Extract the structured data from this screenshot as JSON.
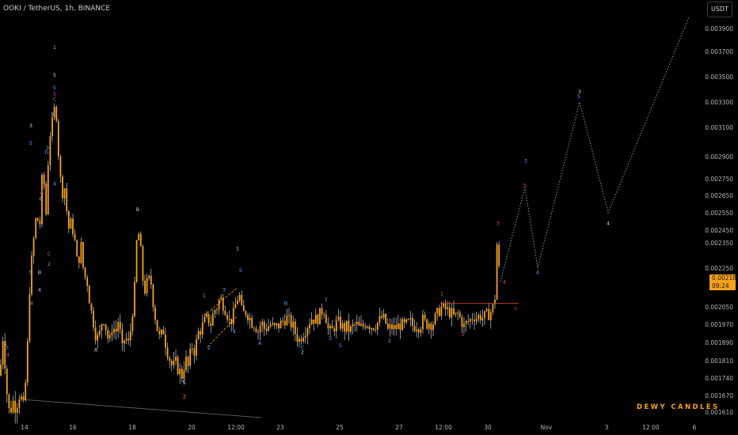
{
  "header": {
    "symbol_title": "OOKI / TetherUS, 1h, BINANCE"
  },
  "scale": {
    "unit_label": "USDT"
  },
  "last_price": {
    "value": "0.002186",
    "countdown": "09:24"
  },
  "watermark": {
    "text": "DEWY CANDLES"
  },
  "colors": {
    "background": "#000000",
    "candle": "#f7a21b",
    "wick": "#c9ccd4",
    "axis_text": "#b2b5be",
    "projection": "#9aa0a6",
    "label_blue": "#4aa3ff",
    "label_orange": "#f7a21b",
    "label_magenta": "#c64aa8",
    "label_white": "#c9ccd4",
    "resistance": "#c0392b"
  },
  "chart_data": {
    "type": "candlestick",
    "title": "OOKI / TetherUS, 1h, BINANCE",
    "ylim": [
      0.00159,
      0.004
    ],
    "y_ticks": [
      "0.003900",
      "0.003700",
      "0.003500",
      "0.003300",
      "0.003100",
      "0.002900",
      "0.002750",
      "0.002650",
      "0.002550",
      "0.002450",
      "0.002350",
      "0.002250",
      "0.002050",
      "0.001970",
      "0.001890",
      "0.001810",
      "0.001740",
      "0.001670",
      "0.001610"
    ],
    "x_ticks": [
      "14",
      "16",
      "18",
      "20",
      "12:00",
      "23",
      "25",
      "27",
      "12:00",
      "30",
      "Nov",
      "3",
      "12:00",
      "6"
    ],
    "price_path": [
      [
        0,
        0.00175
      ],
      [
        4,
        0.00193
      ],
      [
        8,
        0.0017
      ],
      [
        12,
        0.0016
      ],
      [
        16,
        0.00165
      ],
      [
        20,
        0.00163
      ],
      [
        25,
        0.00168
      ],
      [
        30,
        0.00162
      ],
      [
        34,
        0.0018
      ],
      [
        38,
        0.0022
      ],
      [
        42,
        0.00235
      ],
      [
        46,
        0.00255
      ],
      [
        50,
        0.00245
      ],
      [
        54,
        0.00285
      ],
      [
        58,
        0.00252
      ],
      [
        62,
        0.003
      ],
      [
        66,
        0.00315
      ],
      [
        70,
        0.0033
      ],
      [
        74,
        0.0029
      ],
      [
        78,
        0.00265
      ],
      [
        82,
        0.0027
      ],
      [
        86,
        0.00245
      ],
      [
        90,
        0.0025
      ],
      [
        94,
        0.00238
      ],
      [
        98,
        0.00225
      ],
      [
        102,
        0.00235
      ],
      [
        106,
        0.00222
      ],
      [
        110,
        0.00218
      ],
      [
        114,
        0.00205
      ],
      [
        118,
        0.00198
      ],
      [
        122,
        0.0019
      ],
      [
        126,
        0.00193
      ],
      [
        130,
        0.00201
      ],
      [
        134,
        0.00195
      ],
      [
        138,
        0.00188
      ],
      [
        142,
        0.00197
      ],
      [
        146,
        0.00193
      ],
      [
        150,
        0.002
      ],
      [
        154,
        0.00185
      ],
      [
        158,
        0.00192
      ],
      [
        162,
        0.00188
      ],
      [
        166,
        0.00197
      ],
      [
        170,
        0.00215
      ],
      [
        174,
        0.00247
      ],
      [
        178,
        0.0023
      ],
      [
        182,
        0.00212
      ],
      [
        186,
        0.00218
      ],
      [
        190,
        0.0022
      ],
      [
        194,
        0.00205
      ],
      [
        198,
        0.00196
      ],
      [
        202,
        0.0019
      ],
      [
        206,
        0.00195
      ],
      [
        210,
        0.00187
      ],
      [
        214,
        0.00182
      ],
      [
        218,
        0.00178
      ],
      [
        222,
        0.0018
      ],
      [
        226,
        0.00177
      ],
      [
        230,
        0.00175
      ],
      [
        234,
        0.00182
      ],
      [
        238,
        0.00178
      ],
      [
        242,
        0.00188
      ],
      [
        246,
        0.00185
      ],
      [
        250,
        0.00193
      ],
      [
        254,
        0.00195
      ],
      [
        258,
        0.00198
      ],
      [
        262,
        0.002
      ],
      [
        266,
        0.00197
      ],
      [
        270,
        0.00203
      ],
      [
        274,
        0.00205
      ],
      [
        278,
        0.0021
      ],
      [
        282,
        0.00206
      ],
      [
        286,
        0.00203
      ],
      [
        290,
        0.00198
      ],
      [
        294,
        0.002
      ],
      [
        298,
        0.00207
      ],
      [
        302,
        0.00212
      ],
      [
        306,
        0.00201
      ],
      [
        310,
        0.00203
      ],
      [
        314,
        0.00201
      ],
      [
        318,
        0.00198
      ],
      [
        322,
        0.00197
      ],
      [
        326,
        0.00194
      ],
      [
        330,
        0.00198
      ],
      [
        334,
        0.00195
      ],
      [
        338,
        0.00196
      ],
      [
        342,
        0.00197
      ],
      [
        346,
        0.00195
      ],
      [
        350,
        0.00196
      ],
      [
        354,
        0.00197
      ],
      [
        358,
        0.00199
      ],
      [
        362,
        0.002
      ],
      [
        366,
        0.00198
      ],
      [
        370,
        0.00196
      ],
      [
        374,
        0.00192
      ],
      [
        378,
        0.0019
      ],
      [
        382,
        0.00193
      ],
      [
        386,
        0.00195
      ],
      [
        390,
        0.00198
      ],
      [
        394,
        0.002
      ],
      [
        398,
        0.00199
      ],
      [
        402,
        0.002
      ],
      [
        406,
        0.00203
      ],
      [
        410,
        0.00204
      ],
      [
        414,
        0.00195
      ],
      [
        418,
        0.00193
      ],
      [
        422,
        0.00196
      ],
      [
        426,
        0.00198
      ],
      [
        430,
        0.00197
      ],
      [
        434,
        0.00195
      ],
      [
        438,
        0.00196
      ],
      [
        442,
        0.00194
      ],
      [
        446,
        0.00196
      ],
      [
        450,
        0.00197
      ],
      [
        454,
        0.00195
      ],
      [
        458,
        0.00196
      ],
      [
        462,
        0.00198
      ],
      [
        466,
        0.00197
      ],
      [
        470,
        0.00196
      ],
      [
        474,
        0.00197
      ],
      [
        478,
        0.00198
      ],
      [
        482,
        0.002
      ],
      [
        486,
        0.00199
      ],
      [
        490,
        0.00194
      ],
      [
        494,
        0.00196
      ],
      [
        498,
        0.00195
      ],
      [
        502,
        0.00196
      ],
      [
        506,
        0.00197
      ],
      [
        510,
        0.00196
      ],
      [
        514,
        0.00197
      ],
      [
        518,
        0.00198
      ],
      [
        522,
        0.00196
      ],
      [
        526,
        0.00197
      ],
      [
        530,
        0.00196
      ],
      [
        534,
        0.00199
      ],
      [
        538,
        0.00197
      ],
      [
        542,
        0.00198
      ],
      [
        546,
        0.00197
      ],
      [
        550,
        0.002
      ],
      [
        554,
        0.00203
      ],
      [
        558,
        0.00205
      ],
      [
        562,
        0.00204
      ],
      [
        566,
        0.00203
      ],
      [
        570,
        0.00202
      ],
      [
        574,
        0.002
      ],
      [
        578,
        0.00202
      ],
      [
        582,
        0.00199
      ],
      [
        586,
        0.00196
      ],
      [
        590,
        0.00198
      ],
      [
        594,
        0.00199
      ],
      [
        598,
        0.00201
      ],
      [
        602,
        0.002
      ],
      [
        606,
        0.00201
      ],
      [
        610,
        0.002
      ],
      [
        614,
        0.00201
      ],
      [
        618,
        0.00202
      ],
      [
        622,
        0.00204
      ],
      [
        626,
        0.00212
      ],
      [
        628,
        0.0024
      ],
      [
        630,
        0.00225
      ],
      [
        632,
        0.00218
      ]
    ],
    "projection": [
      [
        632,
        0.00218
      ],
      [
        663,
        0.0027
      ],
      [
        679,
        0.00225
      ],
      [
        732,
        0.0033
      ],
      [
        768,
        0.00255
      ],
      [
        870,
        0.004
      ]
    ],
    "resistance": {
      "y": 0.002068,
      "x_from": 556,
      "x_to": 655,
      "label": "X"
    },
    "dashed_channel": [
      {
        "x1": 258,
        "y1": 0.00201,
        "x2": 300,
        "y2": 0.00215
      },
      {
        "x1": 262,
        "y1": 0.00187,
        "x2": 300,
        "y2": 0.00201
      }
    ],
    "lower_trendline": {
      "x1": 30,
      "y1": 0.001655,
      "x2": 330,
      "y2": 0.00159
    },
    "wave_labels": [
      {
        "t": "1",
        "x": 7,
        "y": 0.00188,
        "c": "white"
      },
      {
        "t": "5",
        "x": 9,
        "y": 0.00186,
        "c": "blue"
      },
      {
        "t": "4",
        "x": 10,
        "y": 0.00183,
        "c": "magenta"
      },
      {
        "t": "3",
        "x": 6,
        "y": 0.00182,
        "c": "magenta"
      },
      {
        "t": "1",
        "x": 69,
        "y": 0.00372,
        "c": "orange"
      },
      {
        "t": "5",
        "x": 69,
        "y": 0.0035,
        "c": "white"
      },
      {
        "t": "5",
        "x": 69,
        "y": 0.0034,
        "c": "blue"
      },
      {
        "t": "5",
        "x": 69,
        "y": 0.00335,
        "c": "magenta"
      },
      {
        "t": "C",
        "x": 69,
        "y": 0.00331,
        "c": "magenta"
      },
      {
        "t": "3",
        "x": 66,
        "y": 0.00319,
        "c": "blue"
      },
      {
        "t": "3",
        "x": 39,
        "y": 0.0031,
        "c": "white"
      },
      {
        "t": "5",
        "x": 39,
        "y": 0.00298,
        "c": "blue"
      },
      {
        "t": "A",
        "x": 53,
        "y": 0.00266,
        "c": "magenta"
      },
      {
        "t": "C",
        "x": 52,
        "y": 0.00262,
        "c": "white"
      },
      {
        "t": "B",
        "x": 58,
        "y": 0.0027,
        "c": "magenta"
      },
      {
        "t": "D",
        "x": 59,
        "y": 0.00292,
        "c": "blue"
      },
      {
        "t": "4",
        "x": 69,
        "y": 0.00271,
        "c": "blue"
      },
      {
        "t": "3",
        "x": 60,
        "y": 0.00295,
        "c": "blue"
      },
      {
        "t": "C",
        "x": 62,
        "y": 0.0023,
        "c": "magenta"
      },
      {
        "t": "2",
        "x": 62,
        "y": 0.00226,
        "c": "blue"
      },
      {
        "t": "3",
        "x": 38,
        "y": 0.00222,
        "c": "blue"
      },
      {
        "t": "B",
        "x": 50,
        "y": 0.00222,
        "c": "white"
      },
      {
        "t": "4",
        "x": 50,
        "y": 0.00213,
        "c": "white"
      },
      {
        "t": "4",
        "x": 40,
        "y": 0.00206,
        "c": "blue"
      },
      {
        "t": "B",
        "x": 174,
        "y": 0.00256,
        "c": "white"
      },
      {
        "t": "A",
        "x": 121,
        "y": 0.00185,
        "c": "white"
      },
      {
        "t": "C",
        "x": 233,
        "y": 0.00172,
        "c": "white"
      },
      {
        "t": "2",
        "x": 233,
        "y": 0.00166,
        "c": "orange"
      },
      {
        "t": "1",
        "x": 258,
        "y": 0.0021,
        "c": "blue"
      },
      {
        "t": "3",
        "x": 283,
        "y": 0.00213,
        "c": "blue"
      },
      {
        "t": "4",
        "x": 296,
        "y": 0.00193,
        "c": "blue"
      },
      {
        "t": "2",
        "x": 264,
        "y": 0.00186,
        "c": "blue"
      },
      {
        "t": "1",
        "x": 300,
        "y": 0.00232,
        "c": "white"
      },
      {
        "t": "5",
        "x": 304,
        "y": 0.00223,
        "c": "blue"
      },
      {
        "t": "A",
        "x": 328,
        "y": 0.00188,
        "c": "blue"
      },
      {
        "t": "B",
        "x": 361,
        "y": 0.00206,
        "c": "blue"
      },
      {
        "t": "C",
        "x": 382,
        "y": 0.00186,
        "c": "blue"
      },
      {
        "t": "2",
        "x": 382,
        "y": 0.00184,
        "c": "white"
      },
      {
        "t": "1",
        "x": 412,
        "y": 0.00208,
        "c": "blue"
      },
      {
        "t": "3",
        "x": 417,
        "y": 0.0019,
        "c": "blue"
      },
      {
        "t": "4",
        "x": 424,
        "y": 0.00198,
        "c": "magenta"
      },
      {
        "t": "5",
        "x": 430,
        "y": 0.00187,
        "c": "blue"
      },
      {
        "t": "2",
        "x": 492,
        "y": 0.00189,
        "c": "blue"
      },
      {
        "t": "1",
        "x": 558,
        "y": 0.00211,
        "c": "magenta"
      },
      {
        "t": "2",
        "x": 585,
        "y": 0.00192,
        "c": "magenta"
      },
      {
        "t": "3",
        "x": 629,
        "y": 0.00248,
        "c": "magenta"
      },
      {
        "t": "4",
        "x": 637,
        "y": 0.00217,
        "c": "magenta"
      },
      {
        "t": "3",
        "x": 664,
        "y": 0.00286,
        "c": "blue"
      },
      {
        "t": "5",
        "x": 663,
        "y": 0.0027,
        "c": "magenta"
      },
      {
        "t": "4",
        "x": 679,
        "y": 0.00222,
        "c": "blue"
      },
      {
        "t": "3",
        "x": 732,
        "y": 0.00337,
        "c": "white"
      },
      {
        "t": "5",
        "x": 731,
        "y": 0.00333,
        "c": "blue"
      },
      {
        "t": "4",
        "x": 768,
        "y": 0.00248,
        "c": "white"
      }
    ],
    "grid": false,
    "legend": "none"
  }
}
